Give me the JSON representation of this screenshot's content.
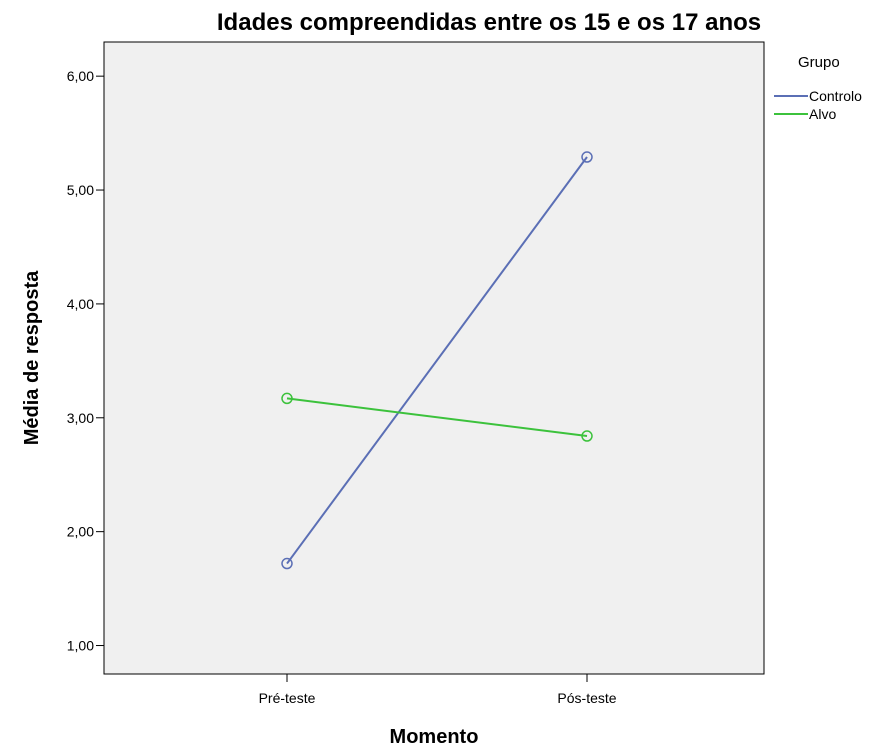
{
  "chart_data": {
    "type": "line",
    "title": "Idades compreendidas entre os 15 e os 17 anos",
    "xlabel": "Momento",
    "ylabel": "Média de resposta",
    "categories": [
      "Pré-teste",
      "Pós-teste"
    ],
    "ylim": [
      0.75,
      6.3
    ],
    "yticks": [
      1,
      2,
      3,
      4,
      5,
      6
    ],
    "ytick_labels": [
      "1,00",
      "2,00",
      "3,00",
      "4,00",
      "5,00",
      "6,00"
    ],
    "grid": false,
    "legend_title": "Grupo",
    "legend_position": "top-right-outside",
    "plot_background": "#f0f0f0",
    "series": [
      {
        "name": "Controlo",
        "values": [
          1.72,
          5.29
        ],
        "color": "#5b6fb5",
        "marker": "open-circle"
      },
      {
        "name": "Alvo",
        "values": [
          3.17,
          2.84
        ],
        "color": "#3cc23c",
        "marker": "open-circle"
      }
    ]
  }
}
